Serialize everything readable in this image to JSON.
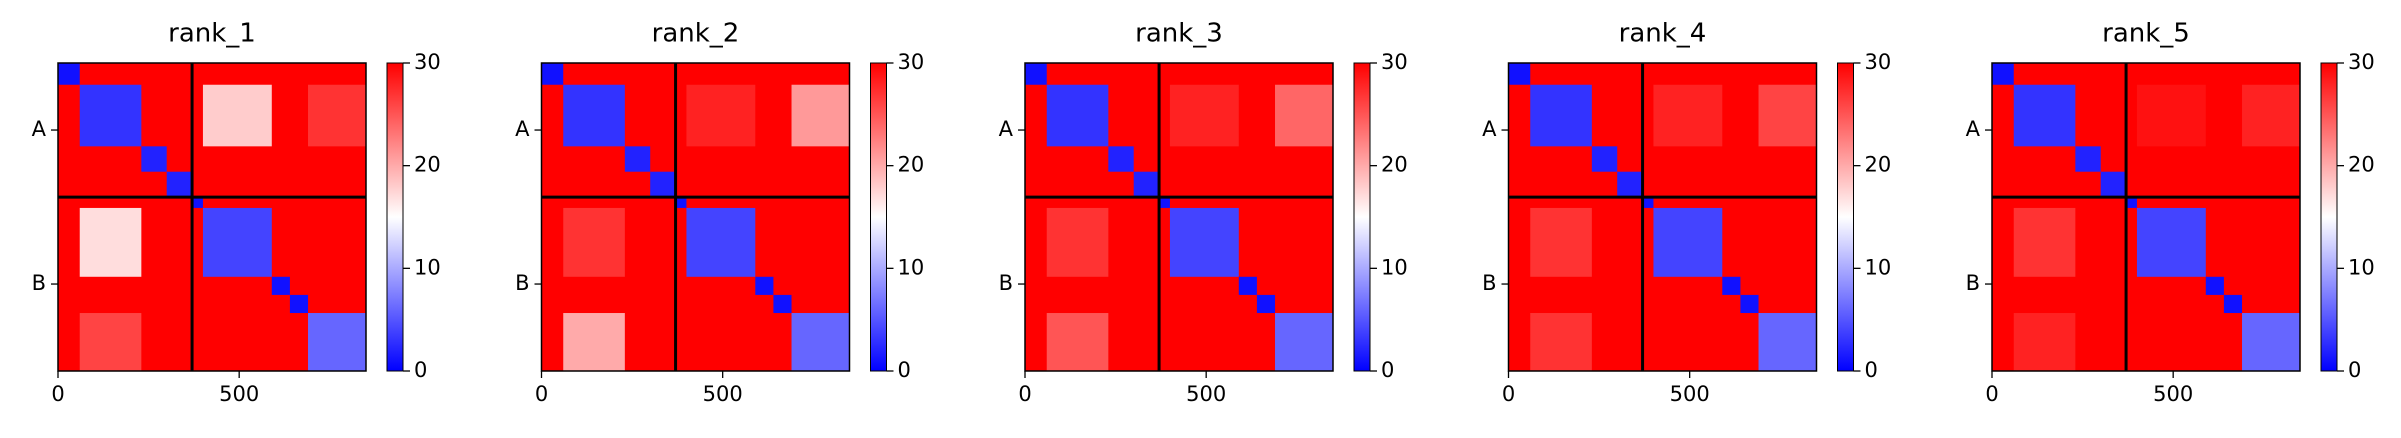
{
  "chart_data": [
    {
      "type": "heatmap",
      "title": "rank_1",
      "xlim": [
        0,
        850
      ],
      "ylim": [
        850,
        0
      ],
      "xticks": [
        0,
        500
      ],
      "yticks": [
        {
          "value": 185,
          "label": "A"
        },
        {
          "value": 610,
          "label": "B"
        }
      ],
      "clim": [
        0,
        30
      ],
      "cticks": [
        0,
        10,
        20,
        30
      ],
      "background": 30,
      "chain_breaks": [
        370
      ],
      "blocks": [
        {
          "x": [
            400,
            590
          ],
          "y": [
            60,
            230
          ],
          "value": 18
        },
        {
          "x": [
            60,
            230
          ],
          "y": [
            400,
            590
          ],
          "value": 17
        },
        {
          "x": [
            690,
            850
          ],
          "y": [
            60,
            230
          ],
          "value": 27
        },
        {
          "x": [
            60,
            230
          ],
          "y": [
            690,
            850
          ],
          "value": 26
        },
        {
          "x": [
            60,
            230
          ],
          "y": [
            60,
            230
          ],
          "value": 3
        },
        {
          "x": [
            400,
            590
          ],
          "y": [
            400,
            590
          ],
          "value": 4
        },
        {
          "x": [
            690,
            850
          ],
          "y": [
            690,
            850
          ],
          "value": 6
        },
        {
          "x": [
            0,
            60
          ],
          "y": [
            0,
            60
          ],
          "value": 1
        },
        {
          "x": [
            230,
            300
          ],
          "y": [
            230,
            300
          ],
          "value": 2
        },
        {
          "x": [
            300,
            370
          ],
          "y": [
            300,
            370
          ],
          "value": 2
        },
        {
          "x": [
            370,
            400
          ],
          "y": [
            370,
            400
          ],
          "value": 1
        },
        {
          "x": [
            590,
            640
          ],
          "y": [
            590,
            640
          ],
          "value": 1
        },
        {
          "x": [
            640,
            690
          ],
          "y": [
            640,
            690
          ],
          "value": 1
        }
      ]
    },
    {
      "type": "heatmap",
      "title": "rank_2",
      "xlim": [
        0,
        850
      ],
      "ylim": [
        850,
        0
      ],
      "xticks": [
        0,
        500
      ],
      "yticks": [
        {
          "value": 185,
          "label": "A"
        },
        {
          "value": 610,
          "label": "B"
        }
      ],
      "clim": [
        0,
        30
      ],
      "cticks": [
        0,
        10,
        20,
        30
      ],
      "background": 30,
      "chain_breaks": [
        370
      ],
      "blocks": [
        {
          "x": [
            400,
            590
          ],
          "y": [
            60,
            230
          ],
          "value": 28
        },
        {
          "x": [
            60,
            230
          ],
          "y": [
            400,
            590
          ],
          "value": 27
        },
        {
          "x": [
            690,
            850
          ],
          "y": [
            60,
            230
          ],
          "value": 21
        },
        {
          "x": [
            60,
            230
          ],
          "y": [
            690,
            850
          ],
          "value": 20
        },
        {
          "x": [
            60,
            230
          ],
          "y": [
            60,
            230
          ],
          "value": 3
        },
        {
          "x": [
            400,
            590
          ],
          "y": [
            400,
            590
          ],
          "value": 4
        },
        {
          "x": [
            690,
            850
          ],
          "y": [
            690,
            850
          ],
          "value": 6
        },
        {
          "x": [
            0,
            60
          ],
          "y": [
            0,
            60
          ],
          "value": 1
        },
        {
          "x": [
            230,
            300
          ],
          "y": [
            230,
            300
          ],
          "value": 2
        },
        {
          "x": [
            300,
            370
          ],
          "y": [
            300,
            370
          ],
          "value": 2
        },
        {
          "x": [
            370,
            400
          ],
          "y": [
            370,
            400
          ],
          "value": 1
        },
        {
          "x": [
            590,
            640
          ],
          "y": [
            590,
            640
          ],
          "value": 1
        },
        {
          "x": [
            640,
            690
          ],
          "y": [
            640,
            690
          ],
          "value": 1
        }
      ]
    },
    {
      "type": "heatmap",
      "title": "rank_3",
      "xlim": [
        0,
        850
      ],
      "ylim": [
        850,
        0
      ],
      "xticks": [
        0,
        500
      ],
      "yticks": [
        {
          "value": 185,
          "label": "A"
        },
        {
          "value": 610,
          "label": "B"
        }
      ],
      "clim": [
        0,
        30
      ],
      "cticks": [
        0,
        10,
        20,
        30
      ],
      "background": 30,
      "chain_breaks": [
        370
      ],
      "blocks": [
        {
          "x": [
            400,
            590
          ],
          "y": [
            60,
            230
          ],
          "value": 28
        },
        {
          "x": [
            60,
            230
          ],
          "y": [
            400,
            590
          ],
          "value": 27
        },
        {
          "x": [
            690,
            850
          ],
          "y": [
            60,
            230
          ],
          "value": 24
        },
        {
          "x": [
            60,
            230
          ],
          "y": [
            690,
            850
          ],
          "value": 25
        },
        {
          "x": [
            60,
            230
          ],
          "y": [
            60,
            230
          ],
          "value": 3
        },
        {
          "x": [
            400,
            590
          ],
          "y": [
            400,
            590
          ],
          "value": 4
        },
        {
          "x": [
            690,
            850
          ],
          "y": [
            690,
            850
          ],
          "value": 6
        },
        {
          "x": [
            0,
            60
          ],
          "y": [
            0,
            60
          ],
          "value": 1
        },
        {
          "x": [
            230,
            300
          ],
          "y": [
            230,
            300
          ],
          "value": 2
        },
        {
          "x": [
            300,
            370
          ],
          "y": [
            300,
            370
          ],
          "value": 2
        },
        {
          "x": [
            370,
            400
          ],
          "y": [
            370,
            400
          ],
          "value": 1
        },
        {
          "x": [
            590,
            640
          ],
          "y": [
            590,
            640
          ],
          "value": 1
        },
        {
          "x": [
            640,
            690
          ],
          "y": [
            640,
            690
          ],
          "value": 1
        }
      ]
    },
    {
      "type": "heatmap",
      "title": "rank_4",
      "xlim": [
        0,
        850
      ],
      "ylim": [
        850,
        0
      ],
      "xticks": [
        0,
        500
      ],
      "yticks": [
        {
          "value": 185,
          "label": "A"
        },
        {
          "value": 610,
          "label": "B"
        }
      ],
      "clim": [
        0,
        30
      ],
      "cticks": [
        0,
        10,
        20,
        30
      ],
      "background": 30,
      "chain_breaks": [
        370
      ],
      "blocks": [
        {
          "x": [
            400,
            590
          ],
          "y": [
            60,
            230
          ],
          "value": 28
        },
        {
          "x": [
            60,
            230
          ],
          "y": [
            400,
            590
          ],
          "value": 27
        },
        {
          "x": [
            690,
            850
          ],
          "y": [
            60,
            230
          ],
          "value": 26
        },
        {
          "x": [
            60,
            230
          ],
          "y": [
            690,
            850
          ],
          "value": 27
        },
        {
          "x": [
            60,
            230
          ],
          "y": [
            60,
            230
          ],
          "value": 3
        },
        {
          "x": [
            400,
            590
          ],
          "y": [
            400,
            590
          ],
          "value": 4
        },
        {
          "x": [
            690,
            850
          ],
          "y": [
            690,
            850
          ],
          "value": 6
        },
        {
          "x": [
            0,
            60
          ],
          "y": [
            0,
            60
          ],
          "value": 1
        },
        {
          "x": [
            230,
            300
          ],
          "y": [
            230,
            300
          ],
          "value": 2
        },
        {
          "x": [
            300,
            370
          ],
          "y": [
            300,
            370
          ],
          "value": 2
        },
        {
          "x": [
            370,
            400
          ],
          "y": [
            370,
            400
          ],
          "value": 1
        },
        {
          "x": [
            590,
            640
          ],
          "y": [
            590,
            640
          ],
          "value": 1
        },
        {
          "x": [
            640,
            690
          ],
          "y": [
            640,
            690
          ],
          "value": 1
        }
      ]
    },
    {
      "type": "heatmap",
      "title": "rank_5",
      "xlim": [
        0,
        850
      ],
      "ylim": [
        850,
        0
      ],
      "xticks": [
        0,
        500
      ],
      "yticks": [
        {
          "value": 185,
          "label": "A"
        },
        {
          "value": 610,
          "label": "B"
        }
      ],
      "clim": [
        0,
        30
      ],
      "cticks": [
        0,
        10,
        20,
        30
      ],
      "background": 30,
      "chain_breaks": [
        370
      ],
      "blocks": [
        {
          "x": [
            400,
            590
          ],
          "y": [
            60,
            230
          ],
          "value": 29
        },
        {
          "x": [
            60,
            230
          ],
          "y": [
            400,
            590
          ],
          "value": 27
        },
        {
          "x": [
            690,
            850
          ],
          "y": [
            60,
            230
          ],
          "value": 28
        },
        {
          "x": [
            60,
            230
          ],
          "y": [
            690,
            850
          ],
          "value": 28
        },
        {
          "x": [
            60,
            230
          ],
          "y": [
            60,
            230
          ],
          "value": 3
        },
        {
          "x": [
            400,
            590
          ],
          "y": [
            400,
            590
          ],
          "value": 4
        },
        {
          "x": [
            690,
            850
          ],
          "y": [
            690,
            850
          ],
          "value": 6
        },
        {
          "x": [
            0,
            60
          ],
          "y": [
            0,
            60
          ],
          "value": 1
        },
        {
          "x": [
            230,
            300
          ],
          "y": [
            230,
            300
          ],
          "value": 2
        },
        {
          "x": [
            300,
            370
          ],
          "y": [
            300,
            370
          ],
          "value": 2
        },
        {
          "x": [
            370,
            400
          ],
          "y": [
            370,
            400
          ],
          "value": 1
        },
        {
          "x": [
            590,
            640
          ],
          "y": [
            590,
            640
          ],
          "value": 1
        },
        {
          "x": [
            640,
            690
          ],
          "y": [
            640,
            690
          ],
          "value": 1
        }
      ]
    }
  ]
}
